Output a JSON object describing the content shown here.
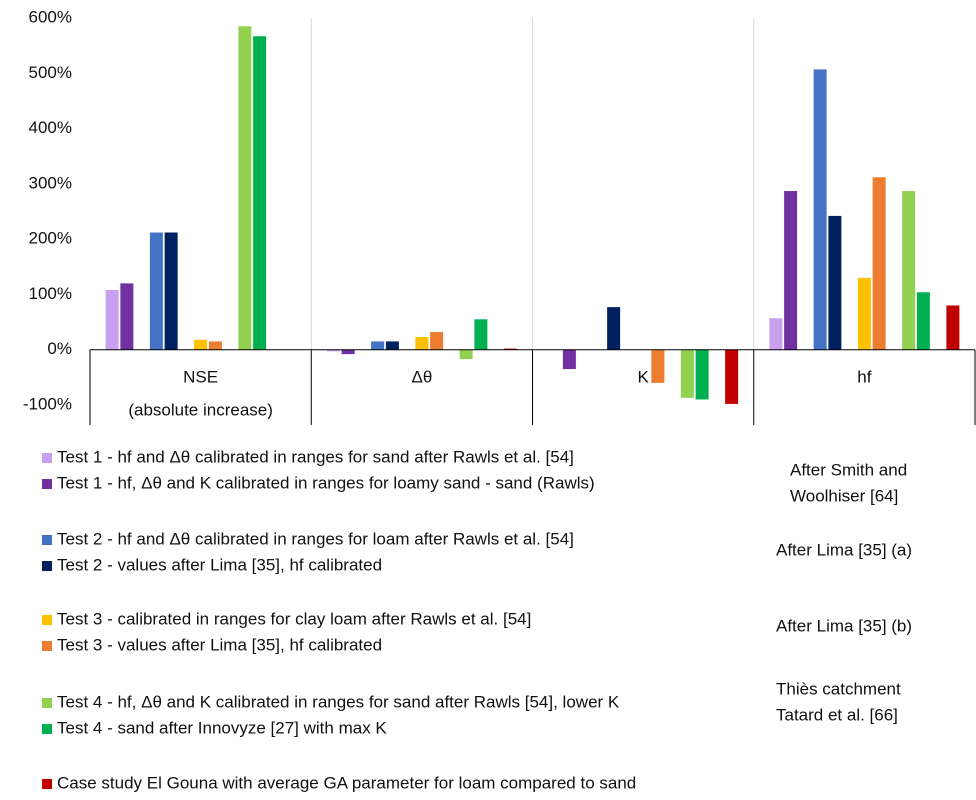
{
  "chart_data": {
    "type": "bar",
    "categories": [
      "NSE",
      "Δθ",
      "K",
      "hf"
    ],
    "category_sublabels": [
      "(absolute increase)",
      null,
      null,
      null
    ],
    "series": [
      {
        "name": "Test 1  - hf and Δθ calibrated in ranges for sand after Rawls et al. [54]",
        "color": "#c9a0f0",
        "values": [
          108,
          -3,
          null,
          57
        ]
      },
      {
        "name": "Test 1  - hf, Δθ and K calibrated in ranges for loamy sand   - sand (Rawls)",
        "color": "#7030a0",
        "values": [
          120,
          -8,
          -35,
          287
        ]
      },
      {
        "name": "Test 2  - hf and Δθ calibrated in ranges for loam after Rawls et al. [54]",
        "color": "#4472c4",
        "values": [
          212,
          15,
          null,
          507
        ]
      },
      {
        "name": "Test 2 - values after Lima [35], hf calibrated",
        "color": "#002060",
        "values": [
          212,
          15,
          77,
          242
        ]
      },
      {
        "name": "Test 3 - calibrated in ranges for clay loam after Rawls et al. [54]",
        "color": "#ffc000",
        "values": [
          18,
          23,
          null,
          130
        ]
      },
      {
        "name": "Test 3 - values after Lima [35], hf calibrated",
        "color": "#ed7d31",
        "values": [
          15,
          32,
          -60,
          312
        ]
      },
      {
        "name": "Test 4  - hf, Δθ and K calibrated in ranges for sand after Rawls [54], lower K",
        "color": "#92d050",
        "values": [
          585,
          -17,
          -87,
          287
        ]
      },
      {
        "name": "Test 4 - sand after Innovyze [27] with max K",
        "color": "#00b050",
        "values": [
          567,
          55,
          -90,
          104
        ]
      },
      {
        "name": "Case study El Gouna with average GA parameter for loam compared to sand",
        "color": "#c00000",
        "values": [
          null,
          2,
          -98,
          80
        ]
      }
    ],
    "ylim": [
      -100,
      600
    ],
    "yticks": [
      {
        "value": -100,
        "label": "-100%"
      },
      {
        "value": 0,
        "label": "0%"
      },
      {
        "value": 100,
        "label": "100%"
      },
      {
        "value": 200,
        "label": "200%"
      },
      {
        "value": 300,
        "label": "300%"
      },
      {
        "value": 400,
        "label": "400%"
      },
      {
        "value": 500,
        "label": "500%"
      },
      {
        "value": 600,
        "label": "600%"
      }
    ],
    "annotations": [
      {
        "lines": [
          "After Smith and",
          "Woolhiser [64]"
        ]
      },
      {
        "lines": [
          "After Lima [35] (a)"
        ]
      },
      {
        "lines": [
          "After Lima [35] (b)"
        ]
      },
      {
        "lines": [
          "Thiès catchment",
          "Tatard et al. [66]"
        ]
      }
    ]
  }
}
